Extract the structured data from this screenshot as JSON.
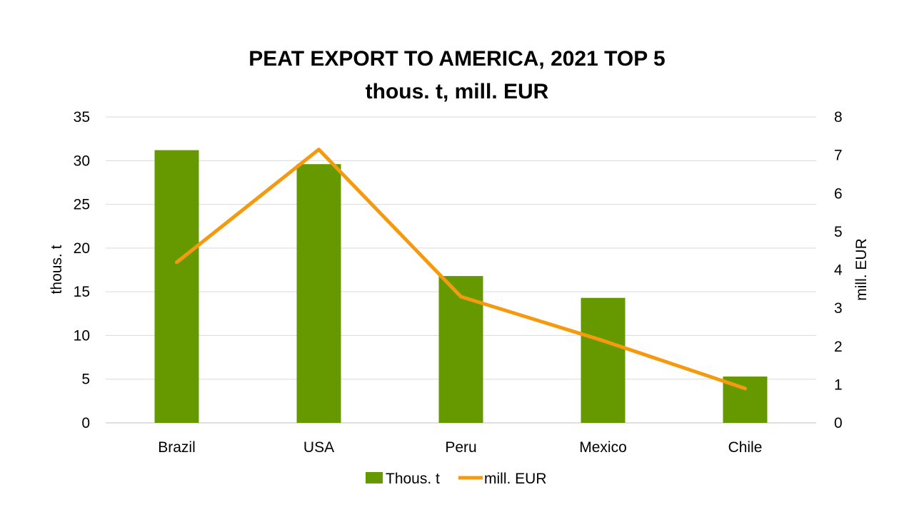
{
  "chart_data": {
    "type": "bar",
    "title": "PEAT EXPORT TO AMERICA, 2021 TOP 5",
    "subtitle": "thous. t, mill. EUR",
    "categories": [
      "Brazil",
      "USA",
      "Peru",
      "Mexico",
      "Chile"
    ],
    "series": [
      {
        "name": "Thous. t",
        "type": "bar",
        "axis": "left",
        "color": "#669900",
        "values": [
          31.2,
          29.6,
          16.8,
          14.3,
          5.3
        ]
      },
      {
        "name": "mill. EUR",
        "type": "line",
        "axis": "right",
        "color": "#F59A0F",
        "values": [
          4.2,
          7.15,
          3.3,
          2.15,
          0.9
        ]
      }
    ],
    "ylabel": "thous. t",
    "y2label": "mill. EUR",
    "ylim": [
      0,
      35
    ],
    "y2lim": [
      0,
      8
    ],
    "yticks": [
      "0",
      "5",
      "10",
      "15",
      "20",
      "25",
      "30",
      "35"
    ],
    "y2ticks": [
      "0",
      "1",
      "2",
      "3",
      "4",
      "5",
      "6",
      "7",
      "8"
    ],
    "grid": true,
    "legend_position": "bottom"
  }
}
